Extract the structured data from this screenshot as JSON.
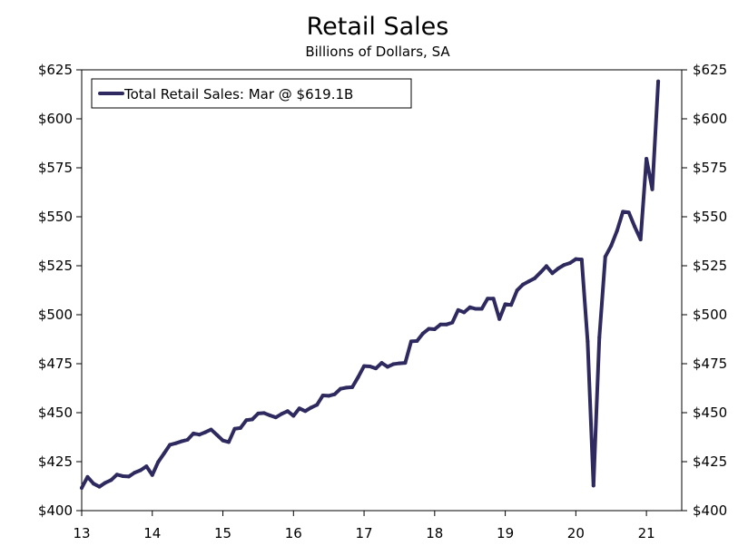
{
  "chart_data": {
    "type": "line",
    "title": "Retail Sales",
    "subtitle": "Billions of Dollars, SA",
    "xlabel": "",
    "ylabel": "",
    "x_ticks": [
      "13",
      "14",
      "15",
      "16",
      "17",
      "18",
      "19",
      "20",
      "21"
    ],
    "x_tick_values": [
      2013,
      2014,
      2015,
      2016,
      2017,
      2018,
      2019,
      2020,
      2021
    ],
    "xlim": [
      2013.0,
      2021.5
    ],
    "y_ticks_left": [
      "$400",
      "$425",
      "$450",
      "$475",
      "$500",
      "$525",
      "$550",
      "$575",
      "$600",
      "$625"
    ],
    "y_ticks_right": [
      "$400",
      "$425",
      "$450",
      "$475",
      "$500",
      "$525",
      "$550",
      "$575",
      "$600",
      "$625"
    ],
    "y_tick_values": [
      400,
      425,
      450,
      475,
      500,
      525,
      550,
      575,
      600,
      625
    ],
    "ylim": [
      400,
      625
    ],
    "grid": false,
    "legend_position": "top-left",
    "series": [
      {
        "name": "Total Retail Sales: Mar @ $619.1B",
        "color": "#2e2a5f",
        "x": [
          2013.0,
          2013.083,
          2013.167,
          2013.25,
          2013.333,
          2013.417,
          2013.5,
          2013.583,
          2013.667,
          2013.75,
          2013.833,
          2013.917,
          2014.0,
          2014.083,
          2014.167,
          2014.25,
          2014.333,
          2014.417,
          2014.5,
          2014.583,
          2014.667,
          2014.75,
          2014.833,
          2014.917,
          2015.0,
          2015.083,
          2015.167,
          2015.25,
          2015.333,
          2015.417,
          2015.5,
          2015.583,
          2015.667,
          2015.75,
          2015.833,
          2015.917,
          2016.0,
          2016.083,
          2016.167,
          2016.25,
          2016.333,
          2016.417,
          2016.5,
          2016.583,
          2016.667,
          2016.75,
          2016.833,
          2016.917,
          2017.0,
          2017.083,
          2017.167,
          2017.25,
          2017.333,
          2017.417,
          2017.5,
          2017.583,
          2017.667,
          2017.75,
          2017.833,
          2017.917,
          2018.0,
          2018.083,
          2018.167,
          2018.25,
          2018.333,
          2018.417,
          2018.5,
          2018.583,
          2018.667,
          2018.75,
          2018.833,
          2018.917,
          2019.0,
          2019.083,
          2019.167,
          2019.25,
          2019.333,
          2019.417,
          2019.5,
          2019.583,
          2019.667,
          2019.75,
          2019.833,
          2019.917,
          2020.0,
          2020.083,
          2020.167,
          2020.25,
          2020.333,
          2020.417,
          2020.5,
          2020.583,
          2020.667,
          2020.75,
          2020.833,
          2020.917,
          2021.0,
          2021.083,
          2021.167
        ],
        "values": [
          411.6,
          417.2,
          413.8,
          412.2,
          414.2,
          415.6,
          418.4,
          417.6,
          417.4,
          419.4,
          420.6,
          422.6,
          418.2,
          424.8,
          429.2,
          433.6,
          434.4,
          435.4,
          436.2,
          439.4,
          438.8,
          440.0,
          441.4,
          438.6,
          435.8,
          435.0,
          441.8,
          442.2,
          446.2,
          446.6,
          449.6,
          449.8,
          448.6,
          447.6,
          449.4,
          450.8,
          448.4,
          452.2,
          450.8,
          452.6,
          454.0,
          458.8,
          458.6,
          459.4,
          462.2,
          462.8,
          463.0,
          468.2,
          473.8,
          473.6,
          472.6,
          475.4,
          473.4,
          474.8,
          475.2,
          475.4,
          486.4,
          486.6,
          490.4,
          492.8,
          492.6,
          495.0,
          495.0,
          496.0,
          502.4,
          501.2,
          503.8,
          503.0,
          503.0,
          508.2,
          508.2,
          497.8,
          505.4,
          505.0,
          512.4,
          515.4,
          517.0,
          518.6,
          521.6,
          524.8,
          521.2,
          523.6,
          525.4,
          526.4,
          528.4,
          528.2,
          486.4,
          412.8,
          488.4,
          529.6,
          535.2,
          542.8,
          552.6,
          552.2,
          545.0,
          538.4,
          579.6,
          564.0,
          619.1
        ]
      }
    ]
  }
}
